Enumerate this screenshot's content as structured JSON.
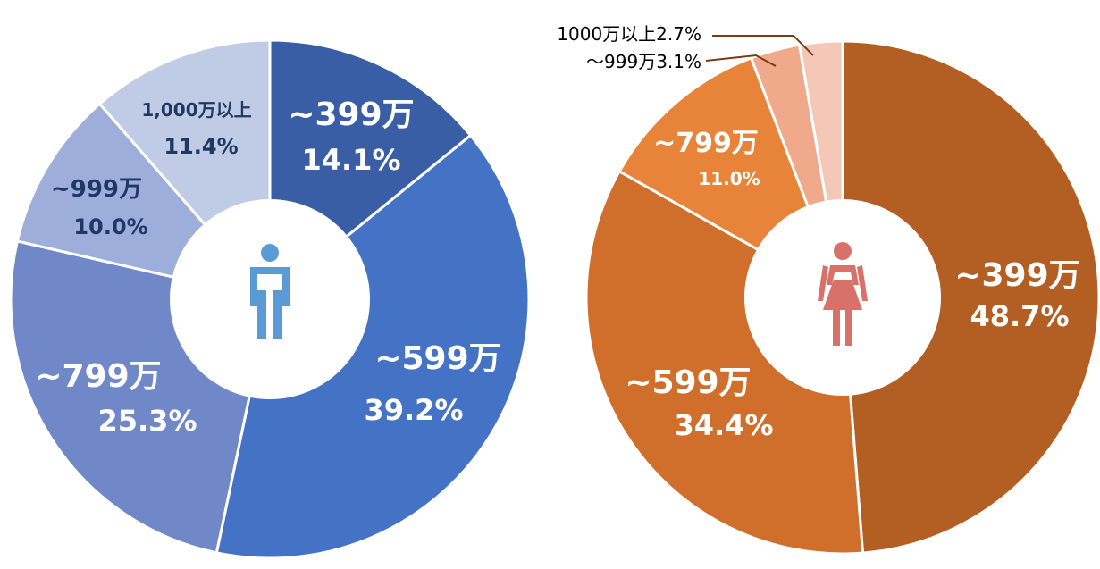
{
  "chart_data": [
    {
      "type": "pie",
      "subtype": "donut",
      "center_icon": "male-person-icon",
      "categories": [
        "~399万",
        "~599万",
        "~799万",
        "~999万",
        "1,000万以上"
      ],
      "values": [
        14.1,
        39.2,
        25.3,
        10.0,
        11.4
      ],
      "value_labels": [
        "14.1%",
        "39.2%",
        "25.3%",
        "10.0%",
        "11.4%"
      ],
      "colors": [
        "#3a5ea6",
        "#4472c4",
        "#7088c8",
        "#9daedb",
        "#c0cbe6"
      ],
      "label_colors": [
        "#ffffff",
        "#ffffff",
        "#ffffff",
        "#1f3864",
        "#1f3864"
      ],
      "icon_color": "#5b9bd5"
    },
    {
      "type": "pie",
      "subtype": "donut",
      "center_icon": "female-person-icon",
      "categories": [
        "~399万",
        "~599万",
        "~799万",
        "~999万",
        "1000万以上"
      ],
      "values": [
        48.7,
        34.4,
        11.0,
        3.1,
        2.7
      ],
      "value_labels": [
        "48.7%",
        "34.4%",
        "11.0%",
        "3.1%",
        "2.7%"
      ],
      "colors": [
        "#b35f24",
        "#d06e2c",
        "#e8843a",
        "#f0a98a",
        "#f4c7b6"
      ],
      "label_colors": [
        "#ffffff",
        "#ffffff",
        "#ffffff",
        "#000000",
        "#000000"
      ],
      "icon_color": "#d9716b",
      "leader_color": "#7a3c12"
    }
  ]
}
